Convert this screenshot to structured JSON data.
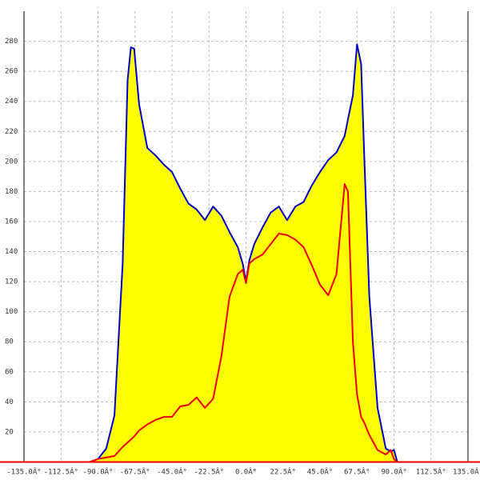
{
  "chart_data": {
    "type": "area-line",
    "x": [
      -95,
      -90,
      -85,
      -80,
      -75,
      -72,
      -70,
      -68,
      -65,
      -60,
      -55,
      -50,
      -45,
      -40,
      -35,
      -30,
      -25,
      -20,
      -15,
      -10,
      -5,
      -2,
      0,
      2,
      5,
      10,
      15,
      20,
      25,
      30,
      35,
      40,
      45,
      50,
      55,
      60,
      62,
      65,
      67.5,
      70,
      72,
      75,
      80,
      85,
      88,
      90,
      92,
      95
    ],
    "series": [
      {
        "color": "#0000cc",
        "fill": "#ffff00",
        "values": [
          0,
          2,
          9,
          31,
          132,
          254,
          276,
          275,
          238,
          209,
          204,
          198,
          193,
          182,
          172,
          168,
          161,
          170,
          164,
          153,
          143,
          132,
          120,
          134,
          145,
          156,
          166,
          170,
          161,
          170,
          173,
          184,
          193,
          201,
          206,
          217,
          228,
          244,
          278,
          265,
          201,
          110,
          36,
          9,
          7,
          8,
          0,
          0
        ]
      },
      {
        "color": "#ee0000",
        "values": [
          0,
          2,
          3,
          4,
          10,
          13,
          15,
          17,
          21,
          25,
          28,
          30,
          30,
          37,
          38,
          43,
          36,
          42,
          70,
          110,
          125,
          128,
          119,
          132,
          135,
          138,
          145,
          152,
          151,
          148,
          143,
          131,
          118,
          111,
          125,
          185,
          180,
          80,
          45,
          30,
          26,
          18,
          8,
          5,
          8,
          2,
          0,
          0
        ]
      }
    ],
    "xlim": [
      -135,
      135
    ],
    "xticks": [
      {
        "value": -135,
        "label": "-135.0Â°"
      },
      {
        "value": -112.5,
        "label": "-112.5Â°"
      },
      {
        "value": -90,
        "label": "-90.0Â°"
      },
      {
        "value": -67.5,
        "label": "-67.5Â°"
      },
      {
        "value": -45,
        "label": "-45.0Â°"
      },
      {
        "value": -22.5,
        "label": "-22.5Â°"
      },
      {
        "value": 0,
        "label": "0.0Â°"
      },
      {
        "value": 22.5,
        "label": "22.5Â°"
      },
      {
        "value": 45,
        "label": "45.0Â°"
      },
      {
        "value": 67.5,
        "label": "67.5Â°"
      },
      {
        "value": 90,
        "label": "90.0Â°"
      },
      {
        "value": 112.5,
        "label": "112.5Â°"
      },
      {
        "value": 135,
        "label": "135.0Â°"
      }
    ],
    "ylim": [
      0,
      300
    ],
    "yticks": [
      20,
      40,
      60,
      80,
      100,
      120,
      140,
      160,
      180,
      200,
      220,
      240,
      260,
      280
    ],
    "grid": true
  }
}
